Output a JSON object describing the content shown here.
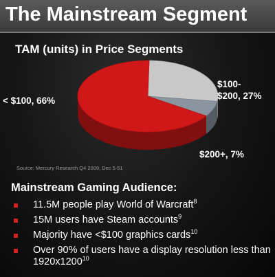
{
  "slide": {
    "title": "The Mainstream Segment",
    "source": "Source:  Mercury Research Q4 2009, Dec 5-51"
  },
  "chart_data": {
    "type": "pie",
    "title": "TAM (units) in Price Segments",
    "slices": [
      {
        "label": "< $100, 66%",
        "value": 66,
        "color": "#d01818"
      },
      {
        "label_line1": "$100-",
        "label_line2": "$200, 27%",
        "value": 27,
        "color": "#c8c8c8"
      },
      {
        "label": "$200+, 7%",
        "value": 7,
        "color": "#8a95a0"
      }
    ]
  },
  "audience": {
    "heading": "Mainstream Gaming Audience:",
    "items": [
      {
        "text": "11.5M people play World of Warcraft",
        "ref": "8"
      },
      {
        "text": "15M users have Steam accounts",
        "ref": "9"
      },
      {
        "text": "Majority have <$100 graphics cards",
        "ref": "10"
      },
      {
        "text": "Over 90% of users have a display resolution less than 1920x1200",
        "ref": "10"
      }
    ]
  }
}
